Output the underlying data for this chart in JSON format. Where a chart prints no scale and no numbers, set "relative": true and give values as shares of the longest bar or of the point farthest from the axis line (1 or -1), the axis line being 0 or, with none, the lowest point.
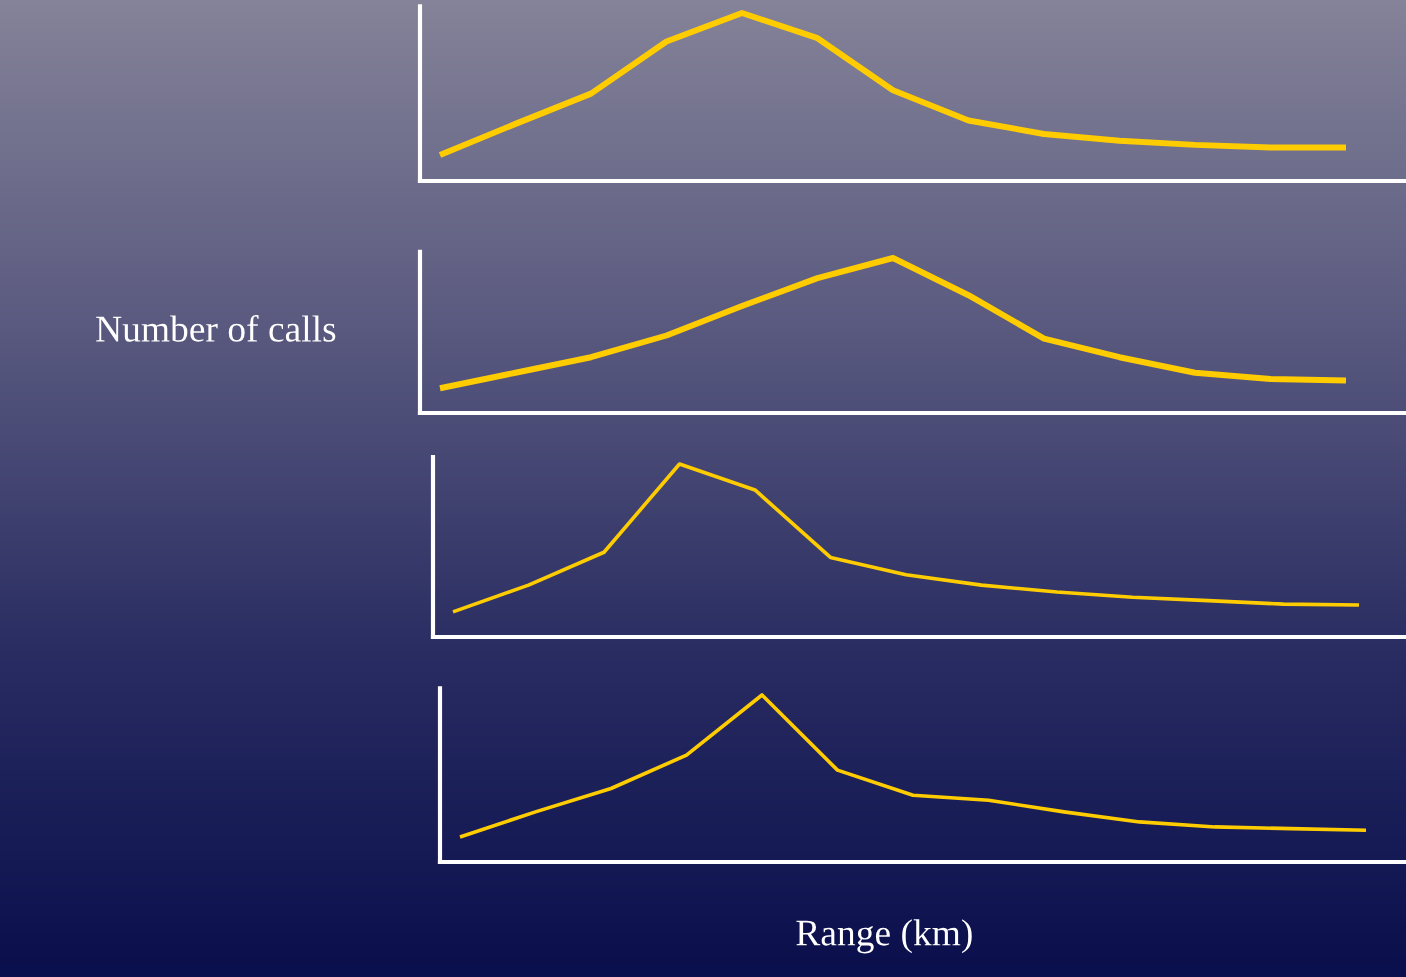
{
  "chart_data": [
    {
      "type": "line",
      "relative": true,
      "categories": [
        null,
        null,
        null,
        null,
        null,
        null,
        null,
        null,
        null,
        null,
        null,
        null,
        null
      ],
      "color": "#ffcc00",
      "grid": false,
      "legend": false,
      "values": [
        0.155,
        0.34,
        0.52,
        0.83,
        1.0,
        0.85,
        0.54,
        0.36,
        0.28,
        0.24,
        0.215,
        0.2,
        0.2
      ]
    },
    {
      "type": "line",
      "relative": true,
      "ylabel": "Number of calls",
      "categories": [
        null,
        null,
        null,
        null,
        null,
        null,
        null,
        null,
        null,
        null,
        null,
        null,
        null
      ],
      "color": "#ffcc00",
      "grid": false,
      "legend": false,
      "values": [
        0.16,
        0.26,
        0.36,
        0.5,
        0.69,
        0.87,
        1.0,
        0.76,
        0.48,
        0.36,
        0.26,
        0.22,
        0.21
      ]
    },
    {
      "type": "line",
      "relative": true,
      "categories": [
        null,
        null,
        null,
        null,
        null,
        null,
        null,
        null,
        null,
        null,
        null,
        null,
        null
      ],
      "color": "#ffcc00",
      "grid": false,
      "legend": false,
      "values": [
        0.145,
        0.3,
        0.49,
        1.0,
        0.85,
        0.46,
        0.36,
        0.3,
        0.26,
        0.23,
        0.21,
        0.19,
        0.185
      ]
    },
    {
      "type": "line",
      "relative": true,
      "xlabel": "Range (km)",
      "categories": [
        null,
        null,
        null,
        null,
        null,
        null,
        null,
        null,
        null,
        null,
        null,
        null,
        null
      ],
      "color": "#ffcc00",
      "grid": false,
      "legend": false,
      "values": [
        0.15,
        0.3,
        0.44,
        0.64,
        1.0,
        0.55,
        0.4,
        0.37,
        0.3,
        0.24,
        0.21,
        0.2,
        0.19
      ]
    }
  ]
}
